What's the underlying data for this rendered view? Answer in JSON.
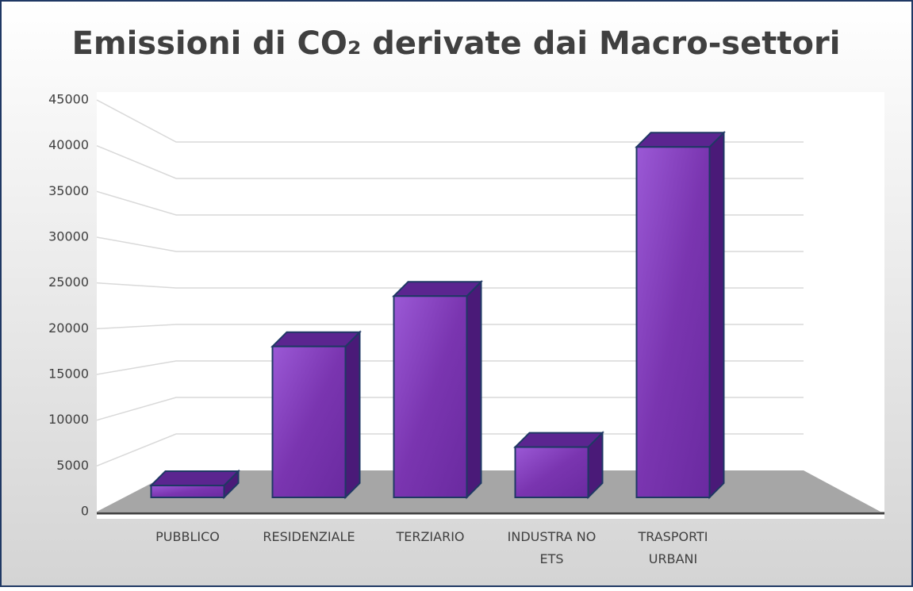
{
  "chart_data": {
    "type": "bar3d",
    "title": "Emissioni di CO₂ derivate dai Macro-settori",
    "categories": [
      "PUBBLICO",
      "RESIDENZIALE",
      "TERZIARIO",
      "INDUSTRA NO ETS",
      "TRASPORTI URBANI"
    ],
    "values": [
      1300,
      16500,
      22000,
      5500,
      38300
    ],
    "color": "#7030a0",
    "ylim": [
      0,
      45000
    ],
    "yticks": [
      0,
      5000,
      10000,
      15000,
      20000,
      25000,
      30000,
      35000,
      40000,
      45000
    ],
    "grid": true
  }
}
